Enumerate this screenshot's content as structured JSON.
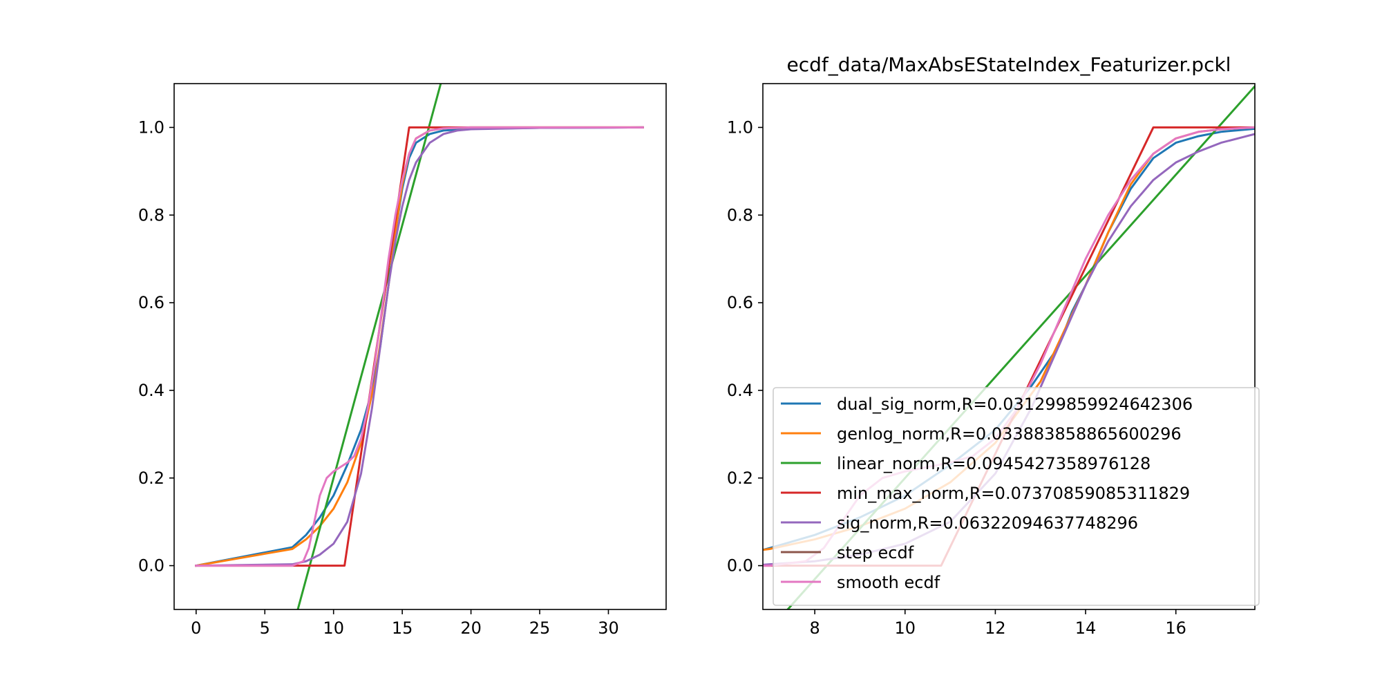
{
  "chart_data": [
    {
      "type": "line",
      "title": "",
      "xlabel": "",
      "ylabel": "",
      "xlim": [
        -1.6,
        34.2
      ],
      "ylim": [
        -0.1,
        1.1
      ],
      "xticks": [
        "0",
        "5",
        "10",
        "15",
        "20",
        "25",
        "30"
      ],
      "yticks": [
        "0.0",
        "0.2",
        "0.4",
        "0.6",
        "0.8",
        "1.0"
      ],
      "grid": false,
      "series": [
        {
          "name": "dual_sig_norm,R=0.031299859924642306",
          "color": "#1f77b4",
          "x": [
            0,
            7,
            8,
            9,
            10,
            11,
            12,
            12.8,
            13.4,
            14,
            14.5,
            15,
            15.5,
            16,
            17,
            18,
            20,
            25,
            32.5
          ],
          "y": [
            0,
            0.042,
            0.07,
            0.11,
            0.16,
            0.23,
            0.31,
            0.4,
            0.5,
            0.64,
            0.76,
            0.86,
            0.93,
            0.965,
            0.985,
            0.993,
            0.997,
            0.999,
            1.0
          ]
        },
        {
          "name": "genlog_norm,R=0.033883858865600296",
          "color": "#ff7f0e",
          "x": [
            0,
            7,
            8,
            9,
            10,
            11,
            12,
            13,
            14,
            14.5,
            15,
            15.5,
            16,
            17,
            18,
            20,
            25,
            32.5
          ],
          "y": [
            0,
            0.038,
            0.06,
            0.09,
            0.13,
            0.19,
            0.28,
            0.42,
            0.64,
            0.76,
            0.87,
            0.94,
            0.975,
            0.993,
            0.998,
            1.0,
            1.0,
            1.0
          ]
        },
        {
          "name": "linear_norm,R=0.0945427358976128",
          "color": "#2ca02c",
          "x": [
            7.4,
            17.8
          ],
          "y": [
            -0.1,
            1.1
          ]
        },
        {
          "name": "min_max_norm,R=0.07370859085311829",
          "color": "#d62728",
          "x": [
            0,
            10.8,
            15.5,
            32.5
          ],
          "y": [
            0,
            0,
            1.0,
            1.0
          ]
        },
        {
          "name": "sig_norm,R=0.06322094637748296",
          "color": "#9467bd",
          "x": [
            0,
            7,
            8,
            9,
            10,
            11,
            12,
            12.8,
            13.4,
            14,
            14.5,
            15,
            15.5,
            16,
            17,
            18,
            19,
            20,
            25,
            32.5
          ],
          "y": [
            0,
            0.003,
            0.01,
            0.025,
            0.05,
            0.1,
            0.21,
            0.36,
            0.5,
            0.64,
            0.74,
            0.82,
            0.88,
            0.92,
            0.965,
            0.985,
            0.993,
            0.996,
            0.999,
            1.0
          ]
        },
        {
          "name": "step ecdf",
          "color": "#8c564b",
          "x": [],
          "y": []
        },
        {
          "name": "smooth ecdf",
          "color": "#e377c2",
          "x": [
            0,
            7,
            7.8,
            8.2,
            8.6,
            9,
            9.5,
            10,
            10.5,
            11,
            11.5,
            12,
            12.5,
            13,
            13.5,
            14,
            14.5,
            15,
            15.5,
            16,
            17,
            18,
            20,
            25,
            32.5
          ],
          "y": [
            0,
            0,
            0.01,
            0.04,
            0.1,
            0.16,
            0.2,
            0.215,
            0.225,
            0.235,
            0.25,
            0.29,
            0.36,
            0.46,
            0.58,
            0.7,
            0.8,
            0.88,
            0.94,
            0.975,
            0.993,
            0.998,
            1.0,
            1.0,
            1.0
          ]
        }
      ]
    },
    {
      "type": "line",
      "title": "ecdf_data/MaxAbsEStateIndex_Featurizer.pckl",
      "xlabel": "",
      "ylabel": "",
      "xlim": [
        6.85,
        17.75
      ],
      "ylim": [
        -0.1,
        1.1
      ],
      "xticks": [
        "8",
        "10",
        "12",
        "14",
        "16"
      ],
      "yticks": [
        "0.0",
        "0.2",
        "0.4",
        "0.6",
        "0.8",
        "1.0"
      ],
      "grid": false,
      "legend_position": "lower-right",
      "series": [
        {
          "name": "dual_sig_norm,R=0.031299859924642306",
          "color": "#1f77b4",
          "x": [
            6.85,
            7,
            8,
            9,
            10,
            11,
            12,
            12.8,
            13.4,
            13.7,
            14,
            14.5,
            15,
            15.5,
            16,
            16.5,
            17,
            17.75
          ],
          "y": [
            0.036,
            0.04,
            0.07,
            0.11,
            0.16,
            0.23,
            0.31,
            0.41,
            0.5,
            0.58,
            0.64,
            0.76,
            0.86,
            0.93,
            0.965,
            0.98,
            0.99,
            0.997
          ]
        },
        {
          "name": "genlog_norm,R=0.033883858865600296",
          "color": "#ff7f0e",
          "x": [
            6.85,
            7,
            8,
            9,
            10,
            11,
            12,
            13,
            13.5,
            14,
            14.5,
            15,
            15.5,
            16,
            16.5,
            17,
            17.75
          ],
          "y": [
            0.036,
            0.038,
            0.06,
            0.09,
            0.13,
            0.19,
            0.28,
            0.42,
            0.53,
            0.64,
            0.76,
            0.87,
            0.94,
            0.975,
            0.99,
            0.996,
            1.0
          ]
        },
        {
          "name": "linear_norm,R=0.0945427358976128",
          "color": "#2ca02c",
          "x": [
            7.4,
            17.75
          ],
          "y": [
            -0.1,
            1.094
          ]
        },
        {
          "name": "min_max_norm,R=0.07370859085311829",
          "color": "#d62728",
          "x": [
            6.85,
            10.8,
            15.5,
            17.75
          ],
          "y": [
            0,
            0,
            1.0,
            1.0
          ]
        },
        {
          "name": "sig_norm,R=0.06322094637748296",
          "color": "#9467bd",
          "x": [
            6.85,
            7,
            8,
            9,
            10,
            11,
            12,
            12.8,
            13.4,
            14,
            14.5,
            15,
            15.5,
            16,
            16.5,
            17,
            17.75
          ],
          "y": [
            0.002,
            0.003,
            0.01,
            0.025,
            0.05,
            0.1,
            0.21,
            0.36,
            0.5,
            0.64,
            0.74,
            0.82,
            0.88,
            0.92,
            0.945,
            0.965,
            0.985
          ]
        },
        {
          "name": "step ecdf",
          "color": "#8c564b",
          "x": [],
          "y": []
        },
        {
          "name": "smooth ecdf",
          "color": "#e377c2",
          "x": [
            6.85,
            7,
            7.8,
            8.2,
            8.6,
            9,
            9.5,
            10,
            10.5,
            11,
            11.5,
            12,
            12.5,
            13,
            13.5,
            14,
            14.5,
            15,
            15.5,
            16,
            16.5,
            17,
            17.75
          ],
          "y": [
            0,
            0,
            0.01,
            0.04,
            0.1,
            0.16,
            0.2,
            0.215,
            0.225,
            0.235,
            0.25,
            0.29,
            0.36,
            0.46,
            0.58,
            0.7,
            0.8,
            0.88,
            0.94,
            0.975,
            0.99,
            0.996,
            1.0
          ]
        }
      ]
    }
  ]
}
